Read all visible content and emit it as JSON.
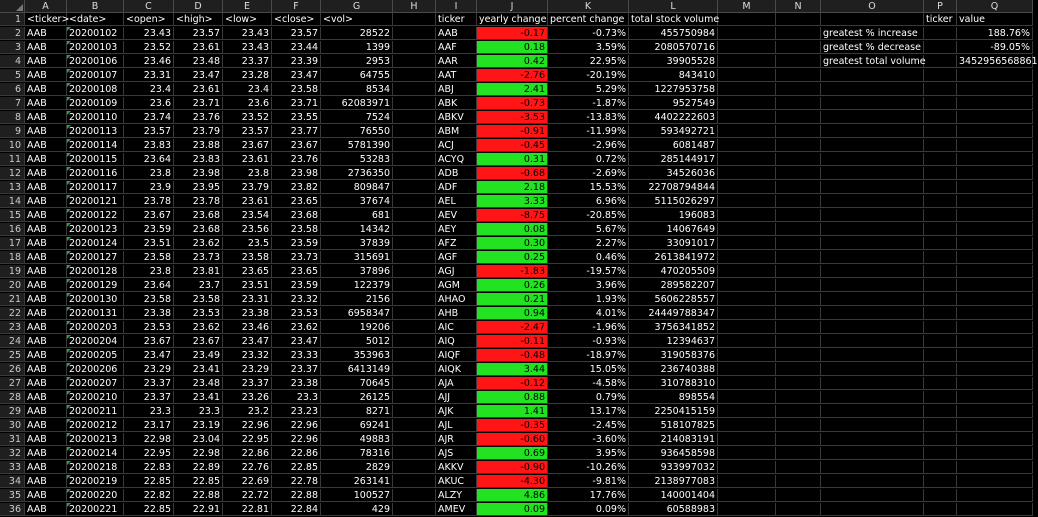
{
  "columns": [
    "A",
    "B",
    "C",
    "D",
    "E",
    "F",
    "G",
    "H",
    "I",
    "J",
    "K",
    "L",
    "M",
    "N",
    "O",
    "P",
    "Q"
  ],
  "stock_header": [
    "<ticker>",
    "<date>",
    "<open>",
    "<high>",
    "<low>",
    "<close>",
    "<vol>"
  ],
  "summary_header": [
    "ticker",
    "yearly change",
    "percent change",
    "total stock volume"
  ],
  "greatest_header": [
    "ticker",
    "value"
  ],
  "rows": [
    {
      "n": "1"
    },
    {
      "n": "2",
      "a": "AAB",
      "b": "20200102",
      "c": "23.43",
      "d": "23.57",
      "e": "23.43",
      "f": "23.57",
      "g": "28522",
      "i": "AAB",
      "j": "-0.17",
      "k": "-0.73%",
      "l": "455750984",
      "o": "greatest % increase",
      "q": "188.76%"
    },
    {
      "n": "3",
      "a": "AAB",
      "b": "20200103",
      "c": "23.52",
      "d": "23.61",
      "e": "23.43",
      "f": "23.44",
      "g": "1399",
      "i": "AAF",
      "j": "0.18",
      "k": "3.59%",
      "l": "2080570716",
      "o": "greatest % decrease",
      "q": "-89.05%"
    },
    {
      "n": "4",
      "a": "AAB",
      "b": "20200106",
      "c": "23.46",
      "d": "23.48",
      "e": "23.37",
      "f": "23.39",
      "g": "2953",
      "i": "AAR",
      "j": "0.42",
      "k": "22.95%",
      "l": "39905528",
      "o": "greatest total volume",
      "q": "3452956568861"
    },
    {
      "n": "5",
      "a": "AAB",
      "b": "20200107",
      "c": "23.31",
      "d": "23.47",
      "e": "23.28",
      "f": "23.47",
      "g": "64755",
      "i": "AAT",
      "j": "-2.76",
      "k": "-20.19%",
      "l": "843410"
    },
    {
      "n": "6",
      "a": "AAB",
      "b": "20200108",
      "c": "23.4",
      "d": "23.61",
      "e": "23.4",
      "f": "23.58",
      "g": "8534",
      "i": "ABJ",
      "j": "2.41",
      "k": "5.29%",
      "l": "1227953758"
    },
    {
      "n": "7",
      "a": "AAB",
      "b": "20200109",
      "c": "23.6",
      "d": "23.71",
      "e": "23.6",
      "f": "23.71",
      "g": "62083971",
      "i": "ABK",
      "j": "-0.73",
      "k": "-1.87%",
      "l": "9527549"
    },
    {
      "n": "8",
      "a": "AAB",
      "b": "20200110",
      "c": "23.74",
      "d": "23.76",
      "e": "23.52",
      "f": "23.55",
      "g": "7524",
      "i": "ABKV",
      "j": "-3.53",
      "k": "-13.83%",
      "l": "4402222603"
    },
    {
      "n": "9",
      "a": "AAB",
      "b": "20200113",
      "c": "23.57",
      "d": "23.79",
      "e": "23.57",
      "f": "23.77",
      "g": "76550",
      "i": "ABM",
      "j": "-0.91",
      "k": "-11.99%",
      "l": "593492721"
    },
    {
      "n": "10",
      "a": "AAB",
      "b": "20200114",
      "c": "23.83",
      "d": "23.88",
      "e": "23.67",
      "f": "23.67",
      "g": "5781390",
      "i": "ACJ",
      "j": "-0.45",
      "k": "-2.96%",
      "l": "6081487"
    },
    {
      "n": "11",
      "a": "AAB",
      "b": "20200115",
      "c": "23.64",
      "d": "23.83",
      "e": "23.61",
      "f": "23.76",
      "g": "53283",
      "i": "ACYQ",
      "j": "0.31",
      "k": "0.72%",
      "l": "285144917"
    },
    {
      "n": "12",
      "a": "AAB",
      "b": "20200116",
      "c": "23.8",
      "d": "23.98",
      "e": "23.8",
      "f": "23.98",
      "g": "2736350",
      "i": "ADB",
      "j": "-0.68",
      "k": "-2.69%",
      "l": "34526036"
    },
    {
      "n": "13",
      "a": "AAB",
      "b": "20200117",
      "c": "23.9",
      "d": "23.95",
      "e": "23.79",
      "f": "23.82",
      "g": "809847",
      "i": "ADF",
      "j": "2.18",
      "k": "15.53%",
      "l": "22708794844"
    },
    {
      "n": "14",
      "a": "AAB",
      "b": "20200121",
      "c": "23.78",
      "d": "23.78",
      "e": "23.61",
      "f": "23.65",
      "g": "37674",
      "i": "AEL",
      "j": "3.33",
      "k": "6.96%",
      "l": "5115026297"
    },
    {
      "n": "15",
      "a": "AAB",
      "b": "20200122",
      "c": "23.67",
      "d": "23.68",
      "e": "23.54",
      "f": "23.68",
      "g": "681",
      "i": "AEV",
      "j": "-8.75",
      "k": "-20.85%",
      "l": "196083"
    },
    {
      "n": "16",
      "a": "AAB",
      "b": "20200123",
      "c": "23.59",
      "d": "23.68",
      "e": "23.56",
      "f": "23.58",
      "g": "14342",
      "i": "AEY",
      "j": "0.08",
      "k": "5.67%",
      "l": "14067649"
    },
    {
      "n": "17",
      "a": "AAB",
      "b": "20200124",
      "c": "23.51",
      "d": "23.62",
      "e": "23.5",
      "f": "23.59",
      "g": "37839",
      "i": "AFZ",
      "j": "0.30",
      "k": "2.27%",
      "l": "33091017"
    },
    {
      "n": "18",
      "a": "AAB",
      "b": "20200127",
      "c": "23.58",
      "d": "23.73",
      "e": "23.58",
      "f": "23.73",
      "g": "315691",
      "i": "AGF",
      "j": "0.25",
      "k": "0.46%",
      "l": "2613841972"
    },
    {
      "n": "19",
      "a": "AAB",
      "b": "20200128",
      "c": "23.8",
      "d": "23.81",
      "e": "23.65",
      "f": "23.65",
      "g": "37896",
      "i": "AGJ",
      "j": "-1.83",
      "k": "-19.57%",
      "l": "470205509"
    },
    {
      "n": "20",
      "a": "AAB",
      "b": "20200129",
      "c": "23.64",
      "d": "23.7",
      "e": "23.51",
      "f": "23.59",
      "g": "122379",
      "i": "AGM",
      "j": "0.26",
      "k": "3.96%",
      "l": "289582207"
    },
    {
      "n": "21",
      "a": "AAB",
      "b": "20200130",
      "c": "23.58",
      "d": "23.58",
      "e": "23.31",
      "f": "23.32",
      "g": "2156",
      "i": "AHAO",
      "j": "0.21",
      "k": "1.93%",
      "l": "5606228557"
    },
    {
      "n": "22",
      "a": "AAB",
      "b": "20200131",
      "c": "23.38",
      "d": "23.53",
      "e": "23.38",
      "f": "23.53",
      "g": "6958347",
      "i": "AHB",
      "j": "0.94",
      "k": "4.01%",
      "l": "24449788347"
    },
    {
      "n": "23",
      "a": "AAB",
      "b": "20200203",
      "c": "23.53",
      "d": "23.62",
      "e": "23.46",
      "f": "23.62",
      "g": "19206",
      "i": "AIC",
      "j": "-2.47",
      "k": "-1.96%",
      "l": "3756341852"
    },
    {
      "n": "24",
      "a": "AAB",
      "b": "20200204",
      "c": "23.67",
      "d": "23.67",
      "e": "23.47",
      "f": "23.47",
      "g": "5012",
      "i": "AIQ",
      "j": "-0.11",
      "k": "-0.93%",
      "l": "12394637"
    },
    {
      "n": "25",
      "a": "AAB",
      "b": "20200205",
      "c": "23.47",
      "d": "23.49",
      "e": "23.32",
      "f": "23.33",
      "g": "353963",
      "i": "AIQF",
      "j": "-0.48",
      "k": "-18.97%",
      "l": "319058376"
    },
    {
      "n": "26",
      "a": "AAB",
      "b": "20200206",
      "c": "23.29",
      "d": "23.41",
      "e": "23.29",
      "f": "23.37",
      "g": "6413149",
      "i": "AIQK",
      "j": "3.44",
      "k": "15.05%",
      "l": "236740388"
    },
    {
      "n": "27",
      "a": "AAB",
      "b": "20200207",
      "c": "23.37",
      "d": "23.48",
      "e": "23.37",
      "f": "23.38",
      "g": "70645",
      "i": "AJA",
      "j": "-0.12",
      "k": "-4.58%",
      "l": "310788310"
    },
    {
      "n": "28",
      "a": "AAB",
      "b": "20200210",
      "c": "23.37",
      "d": "23.41",
      "e": "23.26",
      "f": "23.3",
      "g": "26125",
      "i": "AJJ",
      "j": "0.88",
      "k": "0.79%",
      "l": "898554"
    },
    {
      "n": "29",
      "a": "AAB",
      "b": "20200211",
      "c": "23.3",
      "d": "23.3",
      "e": "23.2",
      "f": "23.23",
      "g": "8271",
      "i": "AJK",
      "j": "1.41",
      "k": "13.17%",
      "l": "2250415159"
    },
    {
      "n": "30",
      "a": "AAB",
      "b": "20200212",
      "c": "23.17",
      "d": "23.19",
      "e": "22.96",
      "f": "22.96",
      "g": "69241",
      "i": "AJL",
      "j": "-0.35",
      "k": "-2.45%",
      "l": "518107825"
    },
    {
      "n": "31",
      "a": "AAB",
      "b": "20200213",
      "c": "22.98",
      "d": "23.04",
      "e": "22.95",
      "f": "22.96",
      "g": "49883",
      "i": "AJR",
      "j": "-0.60",
      "k": "-3.60%",
      "l": "214083191"
    },
    {
      "n": "32",
      "a": "AAB",
      "b": "20200214",
      "c": "22.95",
      "d": "22.98",
      "e": "22.86",
      "f": "22.86",
      "g": "78316",
      "i": "AJS",
      "j": "0.69",
      "k": "3.95%",
      "l": "936458598"
    },
    {
      "n": "33",
      "a": "AAB",
      "b": "20200218",
      "c": "22.83",
      "d": "22.89",
      "e": "22.76",
      "f": "22.85",
      "g": "2829",
      "i": "AKKV",
      "j": "-0.90",
      "k": "-10.26%",
      "l": "933997032"
    },
    {
      "n": "34",
      "a": "AAB",
      "b": "20200219",
      "c": "22.85",
      "d": "22.85",
      "e": "22.69",
      "f": "22.78",
      "g": "263141",
      "i": "AKUC",
      "j": "-4.30",
      "k": "-9.81%",
      "l": "2138977083"
    },
    {
      "n": "35",
      "a": "AAB",
      "b": "20200220",
      "c": "22.82",
      "d": "22.88",
      "e": "22.72",
      "f": "22.88",
      "g": "100527",
      "i": "ALZY",
      "j": "4.86",
      "k": "17.76%",
      "l": "140001404"
    },
    {
      "n": "36",
      "a": "AAB",
      "b": "20200221",
      "c": "22.85",
      "d": "22.91",
      "e": "22.81",
      "f": "22.84",
      "g": "429",
      "i": "AMEV",
      "j": "0.09",
      "k": "0.09%",
      "l": "60588983"
    }
  ]
}
